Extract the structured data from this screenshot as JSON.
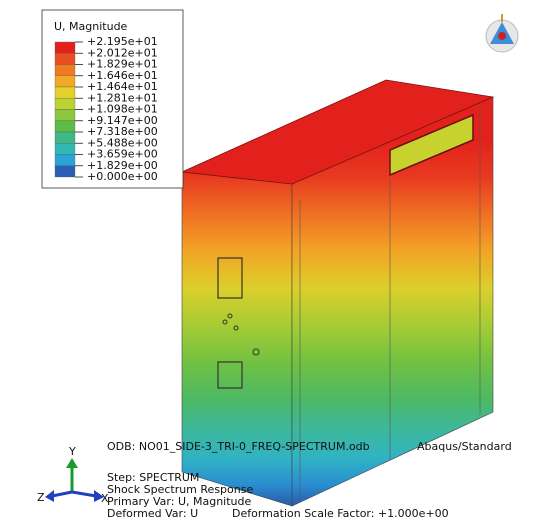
{
  "legend": {
    "title": "U, Magnitude",
    "entries": [
      "+2.195e+01",
      "+2.012e+01",
      "+1.829e+01",
      "+1.646e+01",
      "+1.464e+01",
      "+1.281e+01",
      "+1.098e+01",
      "+9.147e+00",
      "+7.318e+00",
      "+5.488e+00",
      "+3.659e+00",
      "+1.829e+00",
      "+0.000e+00"
    ],
    "colors": [
      "#e3211c",
      "#eb4d22",
      "#f07a23",
      "#f2a925",
      "#e4cf2b",
      "#bcd230",
      "#8cc63e",
      "#5dbb47",
      "#40b883",
      "#33b7b5",
      "#2aa3d8",
      "#2b5fb6"
    ]
  },
  "info": {
    "odb": "ODB: NO01_SIDE-3_TRI-0_FREQ-SPECTRUM.odb",
    "solver": "Abaqus/Standard",
    "step": "Step: SPECTRUM",
    "step_description": "Shock Spectrum Response",
    "primary_var": "Primary Var: U, Magnitude",
    "deformed_var": "Deformed Var: U",
    "scale_factor": "Deformation Scale Factor: +1.000e+00"
  },
  "triad": {
    "y": "Y",
    "z": "Z",
    "x": "X"
  }
}
